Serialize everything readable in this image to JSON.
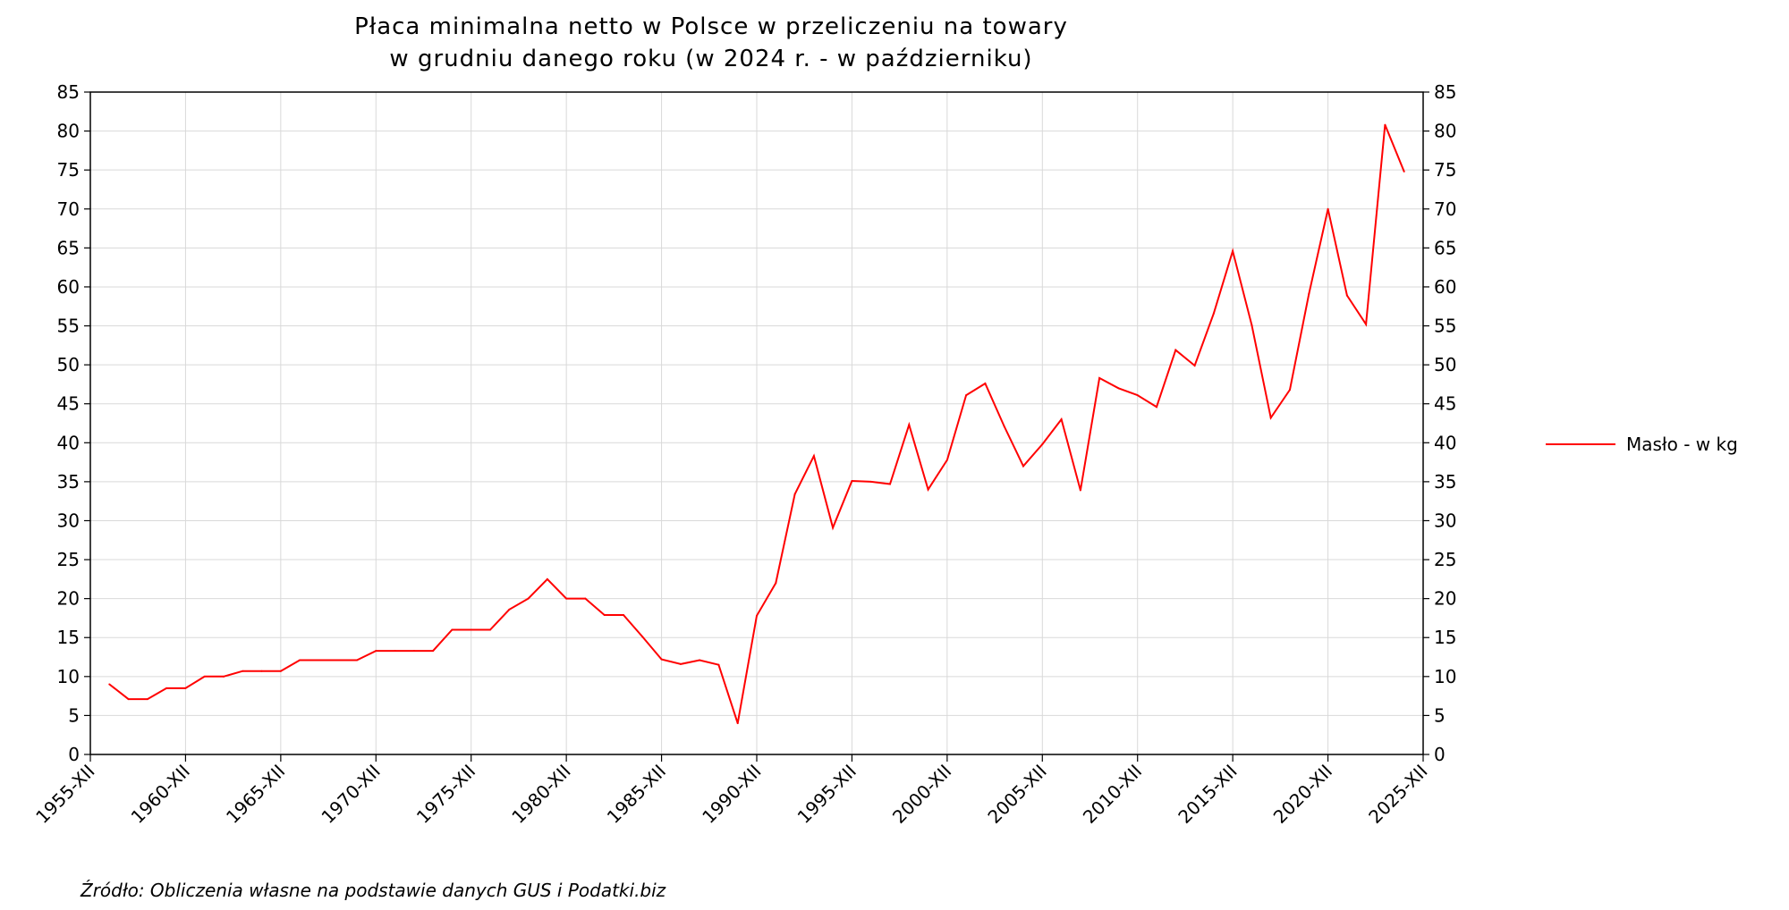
{
  "chart_data": {
    "type": "line",
    "title": [
      "Płaca minimalna netto w Polsce w przeliczeniu na towary",
      "w grudniu danego roku (w 2024 r. - w październiku)"
    ],
    "ylim": [
      0,
      85
    ],
    "ytick_step": 5,
    "xlim": [
      1955,
      2025
    ],
    "x_tick_labels": [
      "1955-XII",
      "1960-XII",
      "1965-XII",
      "1970-XII",
      "1975-XII",
      "1980-XII",
      "1985-XII",
      "1990-XII",
      "1995-XII",
      "2000-XII",
      "2005-XII",
      "2010-XII",
      "2015-XII",
      "2020-XII",
      "2025-XII"
    ],
    "x_tick_years": [
      1955,
      1960,
      1965,
      1970,
      1975,
      1980,
      1985,
      1990,
      1995,
      2000,
      2005,
      2010,
      2015,
      2020,
      2025
    ],
    "grid": true,
    "legend_position": "right",
    "series": [
      {
        "name": "Masło - w kg",
        "color": "#ff0000",
        "x": [
          1956,
          1957,
          1958,
          1959,
          1960,
          1961,
          1962,
          1963,
          1964,
          1965,
          1966,
          1967,
          1968,
          1969,
          1970,
          1971,
          1972,
          1973,
          1974,
          1975,
          1976,
          1977,
          1978,
          1979,
          1980,
          1981,
          1982,
          1983,
          1984,
          1985,
          1986,
          1987,
          1988,
          1989,
          1990,
          1991,
          1992,
          1993,
          1994,
          1995,
          1996,
          1997,
          1998,
          1999,
          2000,
          2001,
          2002,
          2003,
          2004,
          2005,
          2006,
          2007,
          2008,
          2009,
          2010,
          2011,
          2012,
          2013,
          2014,
          2015,
          2016,
          2017,
          2018,
          2019,
          2020,
          2021,
          2022,
          2023,
          2024
        ],
        "values": [
          9.0,
          7.1,
          7.1,
          8.5,
          8.5,
          10.0,
          10.0,
          10.7,
          10.7,
          10.7,
          12.1,
          12.1,
          12.1,
          12.1,
          13.3,
          13.3,
          13.3,
          13.3,
          16.0,
          16.0,
          16.0,
          18.6,
          20.0,
          22.5,
          20.0,
          20.0,
          17.9,
          17.9,
          15.1,
          12.2,
          11.6,
          12.1,
          11.5,
          4.0,
          17.8,
          22.0,
          33.4,
          38.3,
          29.1,
          35.1,
          35.0,
          34.7,
          42.3,
          34.0,
          37.8,
          46.1,
          47.6,
          42.1,
          37.0,
          39.8,
          43.0,
          33.9,
          48.3,
          47.0,
          46.1,
          44.6,
          51.9,
          49.9,
          56.6,
          64.6,
          55.1,
          43.2,
          46.8,
          59.1,
          70.0,
          58.9,
          55.2,
          80.8,
          74.8
        ]
      }
    ],
    "source_note": "Źródło: Obliczenia własne na podstawie danych GUS i Podatki.biz"
  }
}
